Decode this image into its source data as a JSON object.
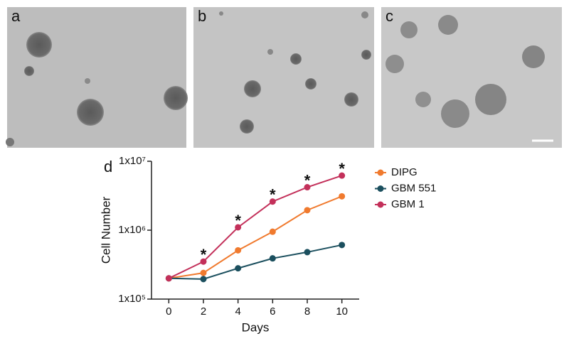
{
  "panel_labels": [
    "a",
    "b",
    "c",
    "d"
  ],
  "chart_data": {
    "type": "line",
    "x_label": "Days",
    "y_label": "Cell Number",
    "x": [
      0,
      2,
      4,
      6,
      8,
      10
    ],
    "series": [
      {
        "name": "DIPG",
        "color": "#f07a2e",
        "values": [
          200000,
          240000,
          510000,
          950000,
          1950000,
          3100000
        ]
      },
      {
        "name": "GBM 551",
        "color": "#1b4f5e",
        "values": [
          200000,
          195000,
          280000,
          390000,
          480000,
          610000
        ]
      },
      {
        "name": "GBM 1",
        "color": "#c3305a",
        "values": [
          200000,
          350000,
          1100000,
          2600000,
          4200000,
          6200000
        ]
      }
    ],
    "annotations": [
      {
        "x": 2,
        "text": "*"
      },
      {
        "x": 4,
        "text": "*"
      },
      {
        "x": 6,
        "text": "*"
      },
      {
        "x": 8,
        "text": "*"
      },
      {
        "x": 10,
        "text": "*"
      }
    ],
    "xlim": [
      -1,
      11
    ],
    "xticks": [
      0,
      2,
      4,
      6,
      8,
      10
    ],
    "ylim": [
      100000,
      10000000
    ],
    "log_y": true,
    "yticks": [
      {
        "value": 100000,
        "label": "1x10⁵"
      },
      {
        "value": 1000000,
        "label": "1x10⁶"
      },
      {
        "value": 10000000,
        "label": "1x10⁷"
      }
    ],
    "legend": "right",
    "grid": false
  }
}
